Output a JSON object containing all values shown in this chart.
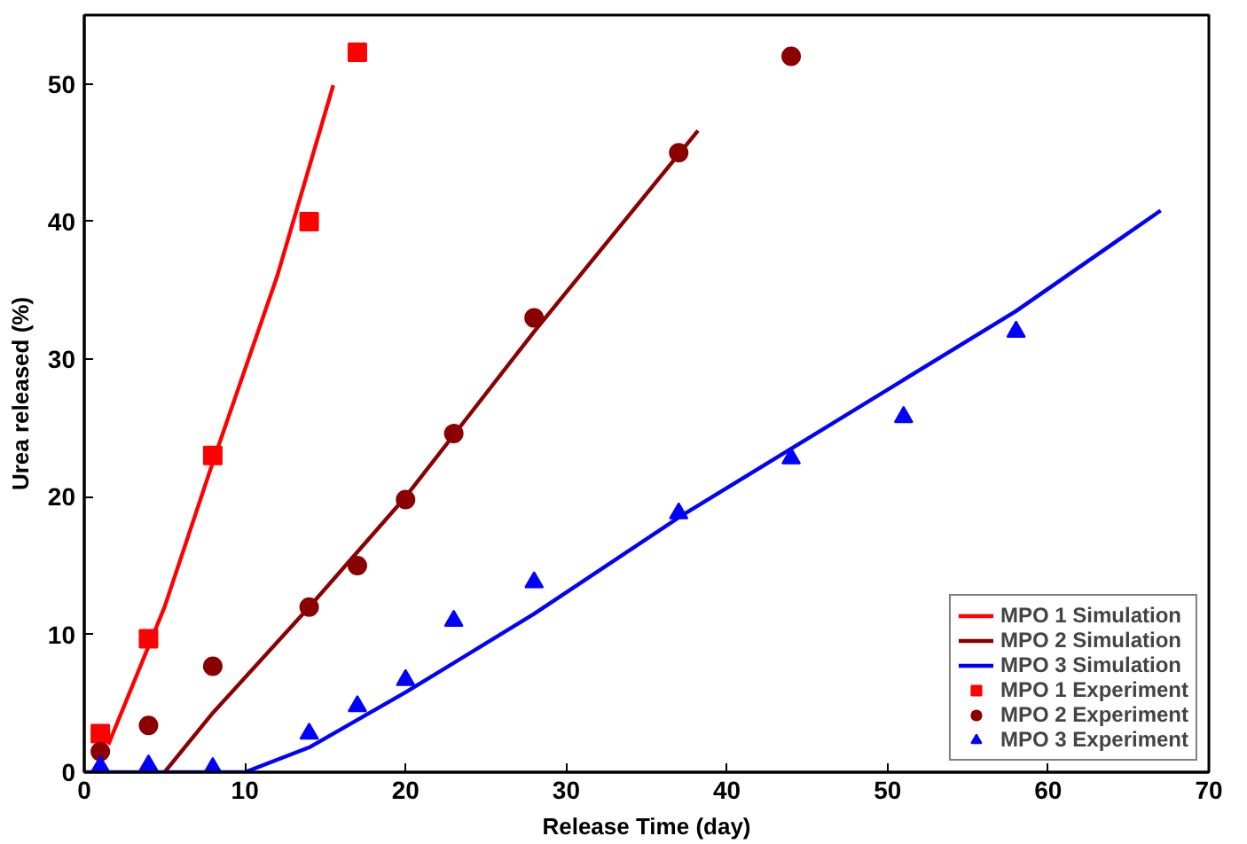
{
  "chart_data": {
    "type": "scatter",
    "xlabel": "Release Time (day)",
    "ylabel": "Urea released (%)",
    "xlim": [
      0,
      70
    ],
    "ylim": [
      0,
      55
    ],
    "xticks": [
      0,
      10,
      20,
      30,
      40,
      50,
      60,
      70
    ],
    "yticks": [
      0,
      10,
      20,
      30,
      40,
      50
    ],
    "grid": false,
    "legend": "bottom right",
    "series": [
      {
        "name": "MPO 1 Simulation",
        "type": "line",
        "color": "#ff0000",
        "x": [
          1.5,
          5,
          8,
          12,
          15.5
        ],
        "values": [
          2,
          12,
          22.5,
          36,
          49.9
        ]
      },
      {
        "name": "MPO 2 Simulation",
        "type": "line",
        "color": "#8b0000",
        "x": [
          5,
          8,
          14,
          20,
          28,
          38.2
        ],
        "values": [
          0,
          4.3,
          12,
          20,
          32,
          46.6
        ]
      },
      {
        "name": "MPO 3 Simulation",
        "type": "line",
        "color": "#0000ff",
        "x": [
          0,
          10,
          14,
          20,
          28,
          37,
          44,
          58,
          67
        ],
        "values": [
          0,
          0,
          1.8,
          5.8,
          11.5,
          18.5,
          23.5,
          33.5,
          40.8
        ]
      },
      {
        "name": "MPO 1 Experiment",
        "marker": "square",
        "color": "#ff0000",
        "x": [
          1,
          4,
          8,
          14,
          17
        ],
        "values": [
          2.8,
          9.7,
          23,
          40,
          52.3
        ]
      },
      {
        "name": "MPO 2 Experiment",
        "marker": "circle",
        "color": "#8b0000",
        "x": [
          1,
          4,
          8,
          14,
          17,
          20,
          23,
          28,
          37,
          44
        ],
        "values": [
          1.5,
          3.4,
          7.7,
          12,
          15,
          19.8,
          24.6,
          33,
          45,
          52
        ]
      },
      {
        "name": "MPO 3 Experiment",
        "marker": "triangle",
        "color": "#0000ff",
        "x": [
          1,
          4,
          8,
          14,
          17,
          20,
          23,
          28,
          37,
          44,
          51,
          58
        ],
        "values": [
          0.4,
          0.5,
          0.3,
          2.8,
          4.8,
          6.7,
          11,
          13.8,
          18.8,
          22.8,
          25.8,
          32
        ]
      }
    ]
  }
}
